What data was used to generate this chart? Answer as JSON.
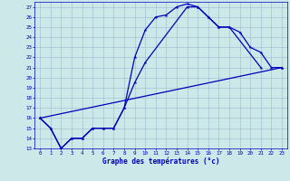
{
  "xlabel": "Graphe des températures (°c)",
  "background_color": "#cce8e8",
  "line_color": "#0000bb",
  "grid_color": "#99bbcc",
  "xlim": [
    -0.5,
    23.5
  ],
  "ylim": [
    13,
    27.5
  ],
  "xticks": [
    0,
    1,
    2,
    3,
    4,
    5,
    6,
    7,
    8,
    9,
    10,
    11,
    12,
    13,
    14,
    15,
    16,
    17,
    18,
    19,
    20,
    21,
    22,
    23
  ],
  "yticks": [
    13,
    14,
    15,
    16,
    17,
    18,
    19,
    20,
    21,
    22,
    23,
    24,
    25,
    26,
    27
  ],
  "s1x": [
    0,
    1,
    2,
    3,
    4,
    5,
    6,
    7,
    8,
    9,
    10,
    11,
    12,
    13,
    14,
    15,
    16,
    17,
    18,
    21
  ],
  "s1y": [
    16,
    15,
    13,
    14,
    14,
    15,
    15,
    15,
    17,
    22,
    24.7,
    26,
    26.2,
    27,
    27.3,
    27,
    26,
    25,
    25,
    21
  ],
  "s2x": [
    0,
    1,
    2,
    3,
    4,
    5,
    6,
    7,
    8,
    9,
    10,
    14,
    15,
    16,
    17,
    18,
    19,
    20,
    21,
    22,
    23
  ],
  "s2y": [
    16,
    15,
    13,
    14,
    14,
    15,
    15,
    15,
    17,
    19.5,
    21.5,
    27,
    27,
    26,
    25,
    25,
    24.5,
    23,
    22.5,
    21,
    21
  ],
  "s3x": [
    0,
    23
  ],
  "s3y": [
    16,
    21
  ]
}
